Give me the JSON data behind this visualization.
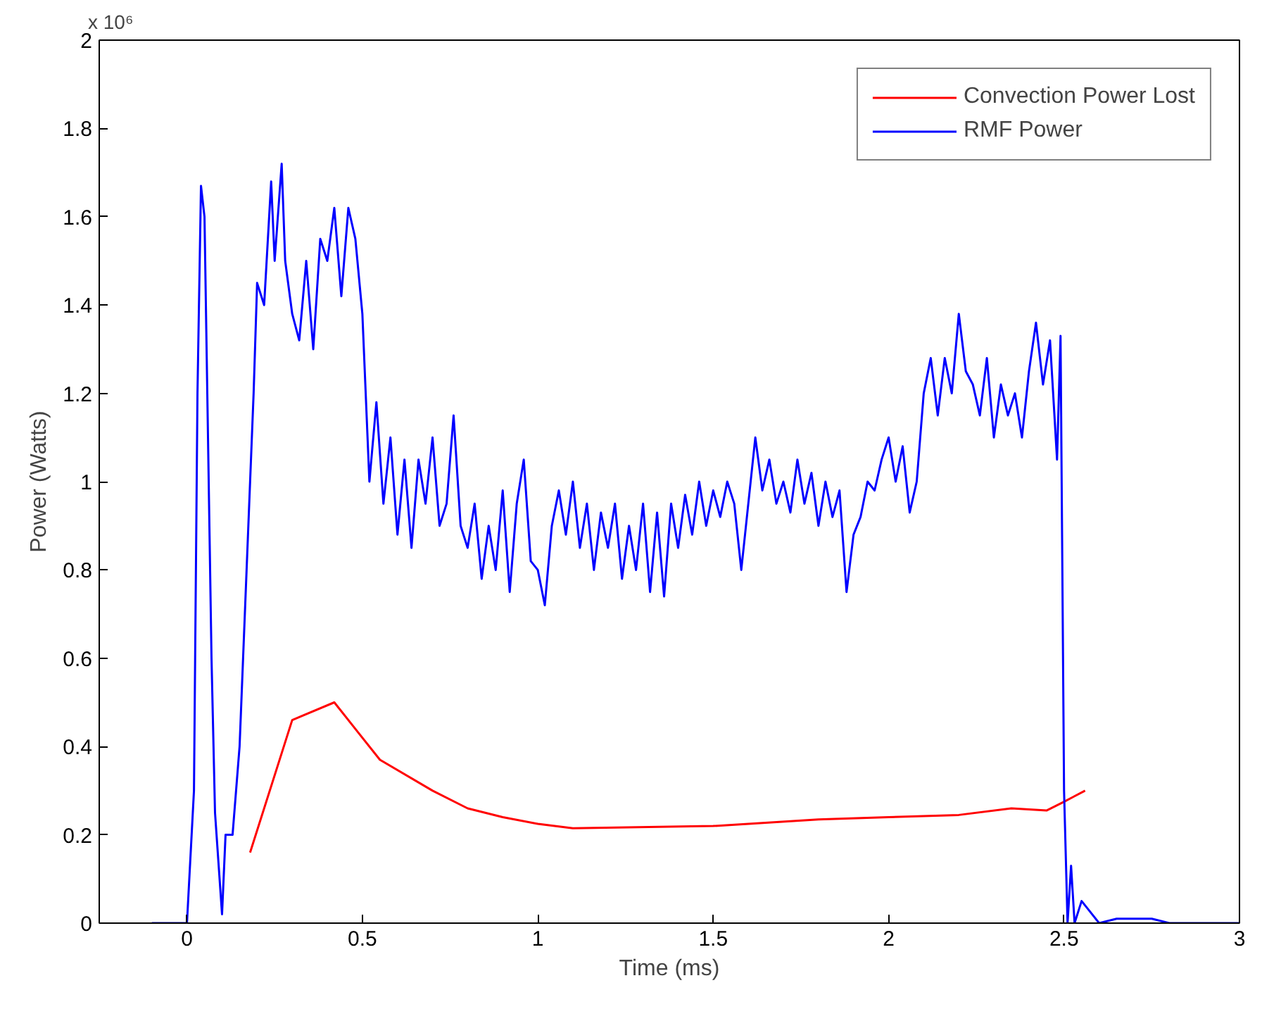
{
  "chart_data": {
    "type": "line",
    "xlabel": "Time (ms)",
    "ylabel": "Power (Watts)",
    "annotations": [
      "x 10⁶"
    ],
    "xlim": [
      -0.25,
      3
    ],
    "xticks": [
      0,
      0.5,
      1,
      1.5,
      2,
      2.5,
      3
    ],
    "ylim": [
      0,
      2
    ],
    "yticks": [
      0,
      0.2,
      0.4,
      0.6,
      0.8,
      1,
      1.2,
      1.4,
      1.6,
      1.8,
      2
    ],
    "grid": false,
    "legend": "top right",
    "marker": "none",
    "line_style": "solid",
    "series": [
      {
        "name": "Convection Power Lost",
        "color": "#ff0000",
        "x": [
          0.18,
          0.3,
          0.42,
          0.55,
          0.7,
          0.8,
          0.9,
          1.0,
          1.1,
          1.5,
          1.8,
          2.0,
          2.2,
          2.35,
          2.45,
          2.5,
          2.56
        ],
        "values": [
          0.16,
          0.46,
          0.5,
          0.37,
          0.3,
          0.26,
          0.24,
          0.225,
          0.215,
          0.22,
          0.235,
          0.24,
          0.245,
          0.26,
          0.255,
          0.275,
          0.3
        ]
      },
      {
        "name": "RMF Power",
        "color": "#0000ff",
        "x": [
          -0.1,
          0.0,
          0.02,
          0.03,
          0.04,
          0.05,
          0.06,
          0.07,
          0.08,
          0.1,
          0.11,
          0.13,
          0.15,
          0.17,
          0.19,
          0.2,
          0.22,
          0.24,
          0.25,
          0.27,
          0.28,
          0.3,
          0.32,
          0.34,
          0.36,
          0.38,
          0.4,
          0.42,
          0.44,
          0.46,
          0.48,
          0.5,
          0.52,
          0.54,
          0.56,
          0.58,
          0.6,
          0.62,
          0.64,
          0.66,
          0.68,
          0.7,
          0.72,
          0.74,
          0.76,
          0.78,
          0.8,
          0.82,
          0.84,
          0.86,
          0.88,
          0.9,
          0.92,
          0.94,
          0.96,
          0.98,
          1.0,
          1.02,
          1.04,
          1.06,
          1.08,
          1.1,
          1.12,
          1.14,
          1.16,
          1.18,
          1.2,
          1.22,
          1.24,
          1.26,
          1.28,
          1.3,
          1.32,
          1.34,
          1.36,
          1.38,
          1.4,
          1.42,
          1.44,
          1.46,
          1.48,
          1.5,
          1.52,
          1.54,
          1.56,
          1.58,
          1.6,
          1.62,
          1.64,
          1.66,
          1.68,
          1.7,
          1.72,
          1.74,
          1.76,
          1.78,
          1.8,
          1.82,
          1.84,
          1.86,
          1.88,
          1.9,
          1.92,
          1.94,
          1.96,
          1.98,
          2.0,
          2.02,
          2.04,
          2.06,
          2.08,
          2.1,
          2.12,
          2.14,
          2.16,
          2.18,
          2.2,
          2.22,
          2.24,
          2.26,
          2.28,
          2.3,
          2.32,
          2.34,
          2.36,
          2.38,
          2.4,
          2.42,
          2.44,
          2.46,
          2.48,
          2.49,
          2.5,
          2.51,
          2.52,
          2.53,
          2.55,
          2.57,
          2.6,
          2.65,
          2.75,
          2.8,
          3.0
        ],
        "values": [
          0,
          0,
          0.3,
          1.2,
          1.67,
          1.6,
          1.1,
          0.6,
          0.25,
          0.02,
          0.2,
          0.2,
          0.4,
          0.8,
          1.2,
          1.45,
          1.4,
          1.68,
          1.5,
          1.72,
          1.5,
          1.38,
          1.32,
          1.5,
          1.3,
          1.55,
          1.5,
          1.62,
          1.42,
          1.62,
          1.55,
          1.38,
          1.0,
          1.18,
          0.95,
          1.1,
          0.88,
          1.05,
          0.85,
          1.05,
          0.95,
          1.1,
          0.9,
          0.95,
          1.15,
          0.9,
          0.85,
          0.95,
          0.78,
          0.9,
          0.8,
          0.98,
          0.75,
          0.95,
          1.05,
          0.82,
          0.8,
          0.72,
          0.9,
          0.98,
          0.88,
          1.0,
          0.85,
          0.95,
          0.8,
          0.93,
          0.85,
          0.95,
          0.78,
          0.9,
          0.8,
          0.95,
          0.75,
          0.93,
          0.74,
          0.95,
          0.85,
          0.97,
          0.88,
          1.0,
          0.9,
          0.98,
          0.92,
          1.0,
          0.95,
          0.8,
          0.95,
          1.1,
          0.98,
          1.05,
          0.95,
          1.0,
          0.93,
          1.05,
          0.95,
          1.02,
          0.9,
          1.0,
          0.92,
          0.98,
          0.75,
          0.88,
          0.92,
          1.0,
          0.98,
          1.05,
          1.1,
          1.0,
          1.08,
          0.93,
          1.0,
          1.2,
          1.28,
          1.15,
          1.28,
          1.2,
          1.38,
          1.25,
          1.22,
          1.15,
          1.28,
          1.1,
          1.22,
          1.15,
          1.2,
          1.1,
          1.25,
          1.36,
          1.22,
          1.32,
          1.05,
          1.33,
          0.3,
          0,
          0.13,
          0,
          0.05,
          0.03,
          0,
          0.01,
          0.01,
          0,
          0
        ]
      }
    ]
  }
}
